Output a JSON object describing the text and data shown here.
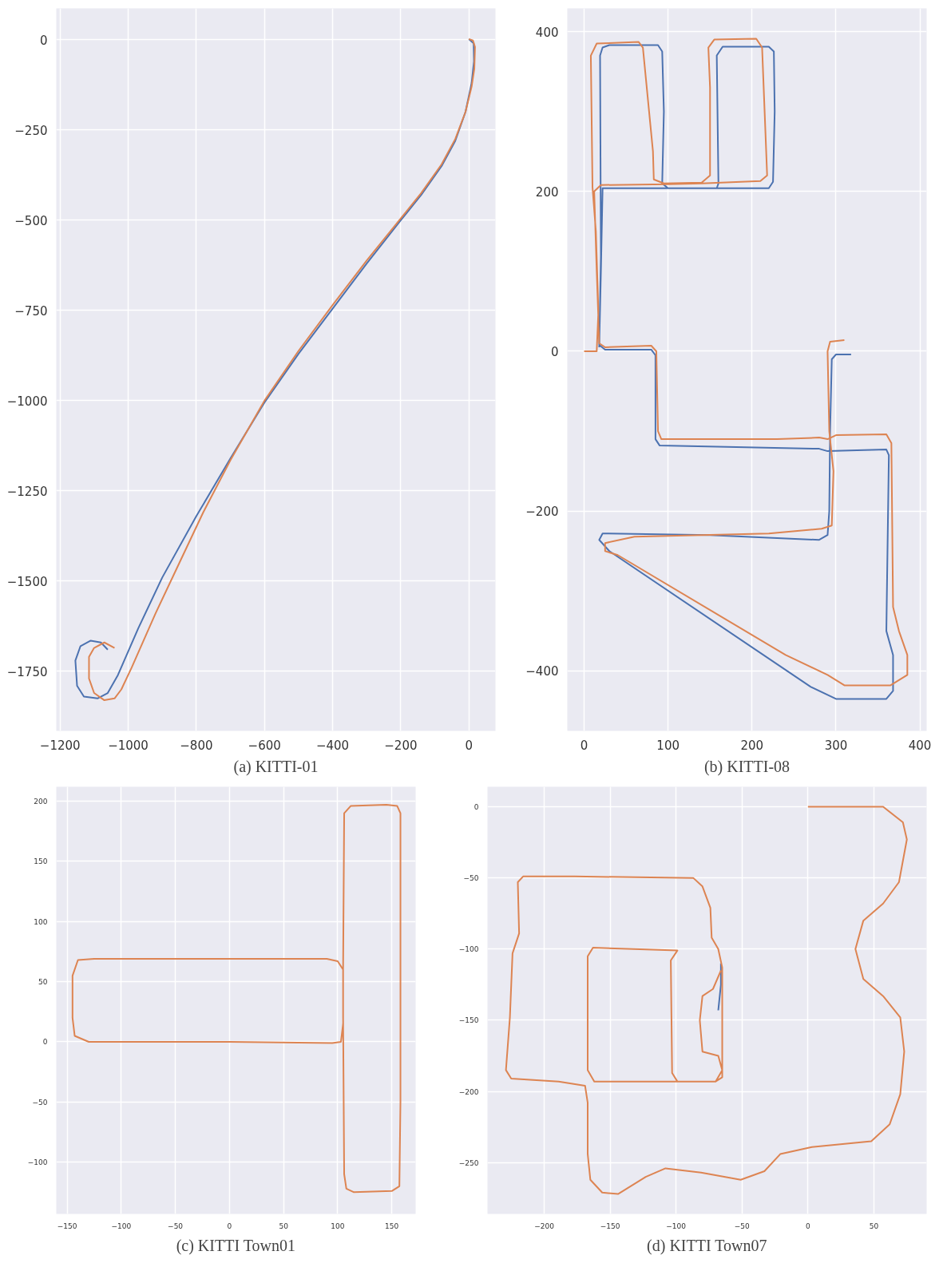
{
  "chart_data": [
    {
      "type": "line",
      "xlim": [
        -1211,
        78
      ],
      "ylim": [
        -1915,
        87
      ],
      "xticks": [
        -1200,
        -1000,
        -800,
        -600,
        -400,
        -200,
        0
      ],
      "yticks": [
        0,
        -250,
        -500,
        -750,
        -1000,
        -1250,
        -1500,
        -1750
      ],
      "grid": true,
      "annotations": [
        "(a) KITTI-01"
      ],
      "series": [
        {
          "color": "#4c72b0",
          "x": [
            0,
            14,
            15,
            8,
            -10,
            -40,
            -80,
            -140,
            -200,
            -300,
            -400,
            -500,
            -600,
            -700,
            -800,
            -900,
            -970,
            -1030,
            -1060,
            -1090,
            -1130,
            -1150,
            -1155,
            -1140,
            -1110,
            -1080,
            -1060
          ],
          "values": [
            2,
            -10,
            -60,
            -120,
            -200,
            -280,
            -350,
            -430,
            -500,
            -620,
            -745,
            -870,
            -1005,
            -1160,
            -1320,
            -1490,
            -1630,
            -1760,
            -1810,
            -1825,
            -1820,
            -1790,
            -1720,
            -1680,
            -1665,
            -1670,
            -1690
          ]
        },
        {
          "color": "#dd8452",
          "x": [
            0,
            12,
            18,
            16,
            8,
            -10,
            -40,
            -80,
            -140,
            -200,
            -300,
            -400,
            -500,
            -600,
            -700,
            -780,
            -850,
            -920,
            -990,
            -1020,
            -1040,
            -1070,
            -1100,
            -1115,
            -1115,
            -1100,
            -1070,
            -1040
          ],
          "values": [
            2,
            -2,
            -20,
            -80,
            -130,
            -200,
            -275,
            -345,
            -425,
            -495,
            -612,
            -735,
            -862,
            -1000,
            -1165,
            -1310,
            -1450,
            -1590,
            -1740,
            -1800,
            -1825,
            -1830,
            -1810,
            -1770,
            -1710,
            -1685,
            -1670,
            -1685
          ]
        }
      ]
    },
    {
      "type": "line",
      "xlim": [
        -20,
        408
      ],
      "ylim": [
        -475,
        429
      ],
      "xticks": [
        0,
        100,
        200,
        300,
        400
      ],
      "yticks": [
        -400,
        -200,
        0,
        200,
        400
      ],
      "grid": true,
      "annotations": [
        "(b) KITTI-08"
      ],
      "series": [
        {
          "color": "#4c72b0",
          "x": [
            18,
            20,
            19,
            22,
            30,
            88,
            93,
            95,
            93,
            100,
            158,
            160,
            158,
            165,
            220,
            226,
            227,
            225,
            220,
            200,
            100,
            22,
            20,
            18,
            25,
            80,
            85,
            85,
            90,
            280,
            290,
            360,
            363,
            360,
            368,
            368,
            360,
            300,
            270,
            30,
            18,
            22,
            150,
            280,
            290,
            292,
            293,
            295,
            300,
            318
          ],
          "values": [
            5,
            120,
            370,
            380,
            383,
            383,
            375,
            300,
            210,
            204,
            204,
            210,
            370,
            381,
            381,
            375,
            300,
            212,
            204,
            204,
            204,
            204,
            100,
            8,
            2,
            2,
            -5,
            -110,
            -118,
            -122,
            -125,
            -123,
            -130,
            -350,
            -380,
            -425,
            -435,
            -435,
            -420,
            -250,
            -236,
            -228,
            -230,
            -236,
            -230,
            -200,
            -100,
            -10,
            -4,
            -4
          ]
        },
        {
          "color": "#dd8452",
          "x": [
            0,
            15,
            17,
            14,
            10,
            8,
            15,
            65,
            70,
            82,
            83,
            95,
            140,
            150,
            150,
            148,
            155,
            205,
            212,
            215,
            218,
            210,
            140,
            100,
            20,
            12,
            15,
            18,
            25,
            80,
            86,
            88,
            92,
            230,
            280,
            290,
            300,
            360,
            366,
            368,
            375,
            385,
            385,
            365,
            310,
            290,
            240,
            40,
            25,
            25,
            60,
            220,
            283,
            295,
            297,
            292,
            290,
            293,
            310
          ],
          "values": [
            0,
            0,
            50,
            150,
            205,
            370,
            385,
            387,
            380,
            250,
            215,
            210,
            211,
            220,
            330,
            380,
            390,
            391,
            380,
            300,
            220,
            213,
            210,
            209,
            208,
            200,
            100,
            10,
            5,
            7,
            0,
            -100,
            -110,
            -110,
            -108,
            -110,
            -105,
            -104,
            -115,
            -320,
            -350,
            -380,
            -405,
            -418,
            -418,
            -405,
            -380,
            -255,
            -250,
            -240,
            -232,
            -228,
            -222,
            -218,
            -150,
            -100,
            0,
            12,
            14
          ]
        }
      ]
    },
    {
      "type": "line",
      "xlim": [
        -160,
        172
      ],
      "ylim": [
        -143,
        212
      ],
      "xticks": [
        -150,
        -100,
        -50,
        0,
        50,
        100,
        150
      ],
      "yticks": [
        -100,
        -50,
        0,
        50,
        100,
        150,
        200
      ],
      "grid": true,
      "annotations": [
        "(c) KITTI Town01"
      ],
      "series": [
        {
          "color": "#dd8452",
          "x": [
            105,
            103,
            95,
            0,
            -130,
            -143,
            -145,
            -145,
            -140,
            -125,
            0,
            90,
            100,
            105,
            105,
            106,
            108,
            115,
            150,
            157,
            158,
            158,
            155,
            145,
            112,
            106,
            105
          ],
          "values": [
            15,
            0,
            -1,
            0,
            0,
            5,
            20,
            55,
            68,
            69,
            69,
            69,
            67,
            60,
            20,
            -110,
            -122,
            -125,
            -124,
            -120,
            -50,
            190,
            196,
            197,
            196,
            190,
            60
          ]
        }
      ]
    },
    {
      "type": "line",
      "xlim": [
        -243,
        90
      ],
      "ylim": [
        -286,
        14
      ],
      "xticks": [
        -200,
        -150,
        -100,
        -50,
        0,
        50
      ],
      "yticks": [
        -250,
        -200,
        -150,
        -100,
        -50,
        0
      ],
      "grid": true,
      "annotations": [
        "(d) KITTI Town07"
      ],
      "series": [
        {
          "color": "#4c72b0",
          "x": [
            -66,
            -66,
            -68
          ],
          "values": [
            -110,
            -125,
            -143
          ]
        },
        {
          "color": "#dd8452",
          "x": [
            0,
            57,
            72,
            75,
            69,
            57,
            42,
            36,
            42,
            57,
            70,
            73,
            70,
            62,
            48,
            3,
            -21,
            -33,
            -51,
            -81,
            -108,
            -123,
            -144,
            -156,
            -165,
            -167,
            -167,
            -169,
            -189,
            -225,
            -229,
            -226,
            -224,
            -219,
            -220,
            -216,
            -177,
            -87,
            -80,
            -74,
            -73,
            -68,
            -65,
            -65,
            -65,
            -70,
            -99,
            -103,
            -104,
            -99,
            -163,
            -167,
            -167,
            -162,
            -104,
            -70,
            -65,
            -68,
            -80,
            -82,
            -80,
            -72,
            -66
          ],
          "values": [
            0,
            0,
            -11,
            -23,
            -53,
            -68,
            -80,
            -100,
            -121,
            -133,
            -148,
            -172,
            -202,
            -223,
            -235,
            -239,
            -244,
            -256,
            -262,
            -257,
            -254,
            -260,
            -272,
            -271,
            -262,
            -244,
            -208,
            -196,
            -193,
            -191,
            -185,
            -148,
            -103,
            -89,
            -53,
            -49,
            -49,
            -50,
            -56,
            -71,
            -92,
            -100,
            -113,
            -149,
            -190,
            -193,
            -193,
            -187,
            -108,
            -101,
            -99,
            -105,
            -185,
            -193,
            -193,
            -193,
            -185,
            -175,
            -172,
            -150,
            -133,
            -128,
            -115
          ]
        }
      ]
    }
  ]
}
